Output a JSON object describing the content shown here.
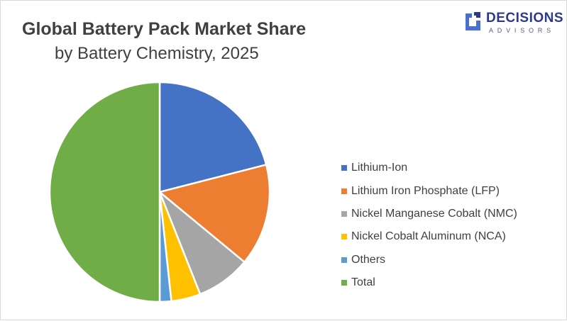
{
  "header": {
    "title": "Global Battery Pack Market Share",
    "subtitle": "by Battery Chemistry, 2025"
  },
  "logo": {
    "name": "DECISIONS",
    "tagline": "ADVISORS",
    "brand_color": "#2b3a8c",
    "accent_color": "#4a6fd4"
  },
  "chart_data": {
    "type": "pie",
    "title": "Global Battery Pack Market Share",
    "subtitle": "by Battery Chemistry, 2025",
    "legend_position": "right",
    "categories": [
      "Lithium-Ion",
      "Lithium Iron Phosphate (LFP)",
      "Nickel Manganese Cobalt (NMC)",
      "Nickel Cobalt Aluminum (NCA)",
      "Others",
      "Total"
    ],
    "values": [
      21,
      15,
      8,
      4.3,
      1.7,
      50
    ],
    "colors": [
      "#4472c4",
      "#ed7d31",
      "#a5a5a5",
      "#ffc000",
      "#5b9bd5",
      "#70ad47"
    ]
  }
}
